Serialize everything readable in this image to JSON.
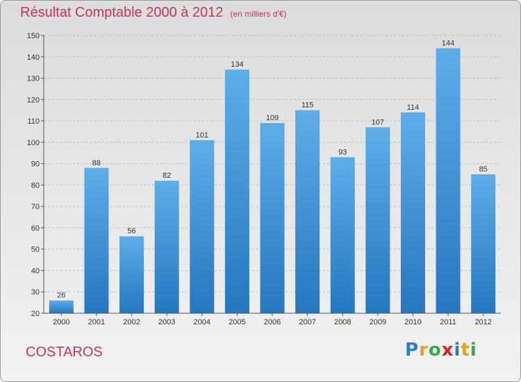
{
  "header": {
    "title": "Résultat Comptable 2000 à 2012",
    "unit": "(en milliers d'€)"
  },
  "commune": "COSTAROS",
  "logo": {
    "letters": [
      "P",
      "r",
      "o",
      "x",
      "i",
      "t",
      "i"
    ],
    "colors": [
      "#2a7fc9",
      "#e8a020",
      "#3aa94a",
      "#d8232a",
      "#2a7fc9",
      "#e8a020",
      "#3aa94a"
    ]
  },
  "chart_data": {
    "type": "bar",
    "categories": [
      "2000",
      "2001",
      "2002",
      "2003",
      "2004",
      "2005",
      "2006",
      "2007",
      "2008",
      "2009",
      "2010",
      "2011",
      "2012"
    ],
    "values": [
      26,
      88,
      56,
      82,
      101,
      134,
      109,
      115,
      93,
      107,
      114,
      144,
      85
    ],
    "ylim": [
      20,
      150
    ],
    "yticks": [
      20,
      30,
      40,
      50,
      60,
      70,
      80,
      90,
      100,
      110,
      120,
      130,
      140,
      150
    ],
    "grid": "horizontal dashed",
    "bar_color": "#3a8fd6"
  }
}
